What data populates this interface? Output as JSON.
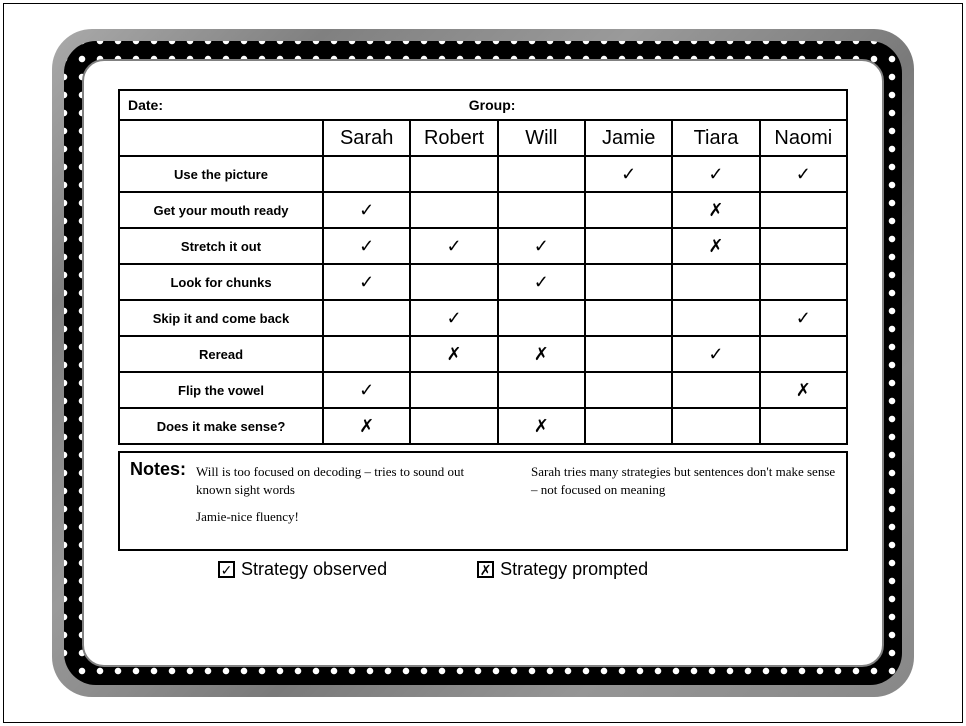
{
  "header": {
    "date_label": "Date:",
    "group_label": "Group:"
  },
  "students": [
    "Sarah",
    "Robert",
    "Will",
    "Jamie",
    "Tiara",
    "Naomi"
  ],
  "strategies": [
    "Use the picture",
    "Get your mouth ready",
    "Stretch it out",
    "Look for chunks",
    "Skip it and come back",
    "Reread",
    "Flip the vowel",
    "Does it make sense?"
  ],
  "marks": {
    "check": "✓",
    "cross": "✗",
    "empty": ""
  },
  "grid": [
    [
      "",
      "",
      "",
      "✓",
      "✓",
      "✓"
    ],
    [
      "✓",
      "",
      "",
      "",
      "✗",
      ""
    ],
    [
      "✓",
      "✓",
      "✓",
      "",
      "✗",
      ""
    ],
    [
      "✓",
      "",
      "✓",
      "",
      "",
      ""
    ],
    [
      "",
      "✓",
      "",
      "",
      "",
      "✓"
    ],
    [
      "",
      "✗",
      "✗",
      "",
      "✓",
      ""
    ],
    [
      "✓",
      "",
      "",
      "",
      "",
      "✗"
    ],
    [
      "✗",
      "",
      "✗",
      "",
      "",
      ""
    ]
  ],
  "notes": {
    "label": "Notes:",
    "col1_line1": "Will is too focused on decoding – tries to sound out known sight words",
    "col1_line2": "Jamie-nice fluency!",
    "col2_line1": "Sarah tries many strategies but sentences don't make sense – not focused on meaning"
  },
  "legend": {
    "observed_symbol": "☑",
    "observed_label": "Strategy observed",
    "prompted_symbol": "☒",
    "prompted_label": "Strategy prompted"
  },
  "colors": {
    "border": "#000000",
    "background": "#ffffff",
    "frame_gray": "#8a8a8a"
  }
}
